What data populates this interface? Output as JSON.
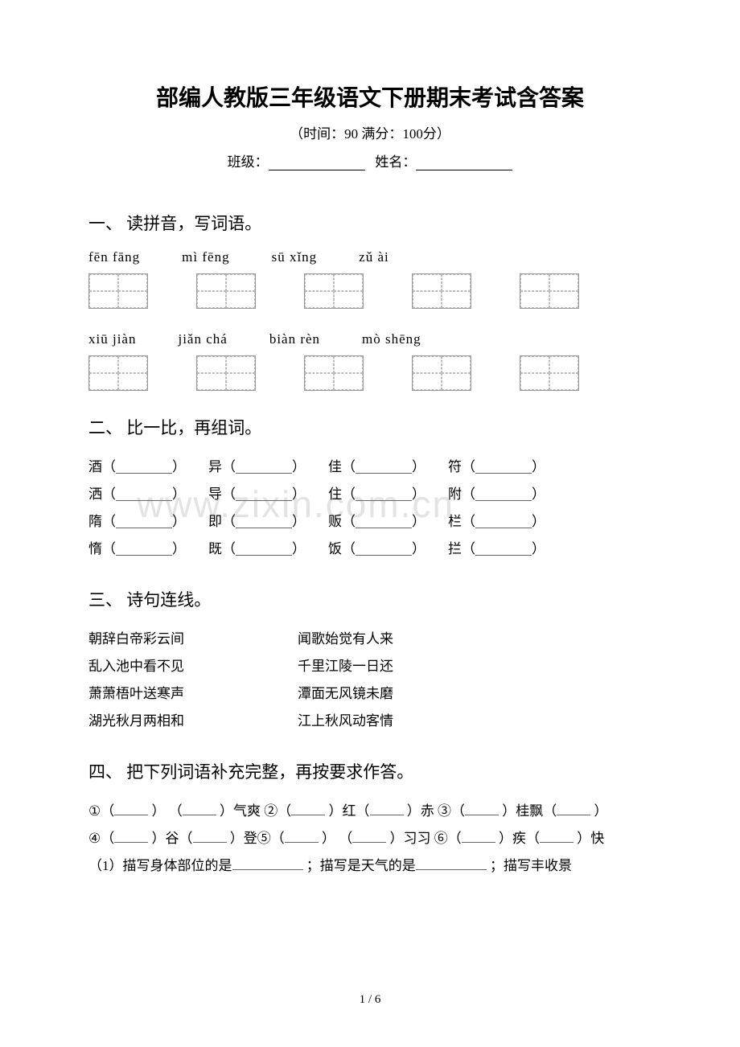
{
  "title": "部编人教版三年级语文下册期末考试含答案",
  "subtitle": "（时间：90    满分：100分）",
  "class_label": "班级：",
  "name_label": "姓名：",
  "watermark": "www.zixin.com.cn",
  "sections": {
    "s1": {
      "heading": "一、 读拼音，写词语。",
      "row1_pinyin": [
        "fēn  fāng",
        "mì  fēng",
        "sū   xǐng",
        "zǔ    ài"
      ],
      "row2_pinyin": [
        "xiū    jiàn",
        "jiǎn  chá",
        "biàn  rèn",
        "mò  shēng"
      ]
    },
    "s2": {
      "heading": "二、 比一比，再组词。",
      "rows": [
        [
          "酒",
          "异",
          "佳",
          "符"
        ],
        [
          "洒",
          "导",
          "住",
          "附"
        ],
        [
          "隋",
          "即",
          "贩",
          "栏"
        ],
        [
          "惰",
          "既",
          "饭",
          "拦"
        ]
      ]
    },
    "s3": {
      "heading": "三、 诗句连线。",
      "pairs": [
        [
          "朝辞白帝彩云间",
          "闻歌始觉有人来"
        ],
        [
          "乱入池中看不见",
          "千里江陵一日还"
        ],
        [
          "萧萧梧叶送寒声",
          "潭面无风镜未磨"
        ],
        [
          "湖光秋月两相和",
          "江上秋风动客情"
        ]
      ]
    },
    "s4": {
      "heading": "四、 把下列词语补充完整，再按要求作答。",
      "line1_parts": [
        "①（",
        "） （",
        "）气爽  ②（",
        "）红（",
        "）赤  ③（",
        "）桂飘（",
        "）"
      ],
      "line2_parts": [
        "④（",
        "）谷（",
        "）登⑤（",
        "） （",
        "）习习   ⑥（",
        "）疾（",
        "）快"
      ],
      "line3_prefix": "（1）描写身体部位的是",
      "line3_mid": "；描写是天气的是",
      "line3_suffix": " ；描写丰收景"
    }
  },
  "footer": "1 / 6",
  "colors": {
    "text": "#000000",
    "bg": "#ffffff",
    "grid_border": "#999999",
    "grid_dash": "#bbbbbb",
    "watermark": "rgba(200,200,200,0.5)"
  },
  "fonts": {
    "title_size": 28,
    "body_size": 17,
    "heading_size": 21
  }
}
